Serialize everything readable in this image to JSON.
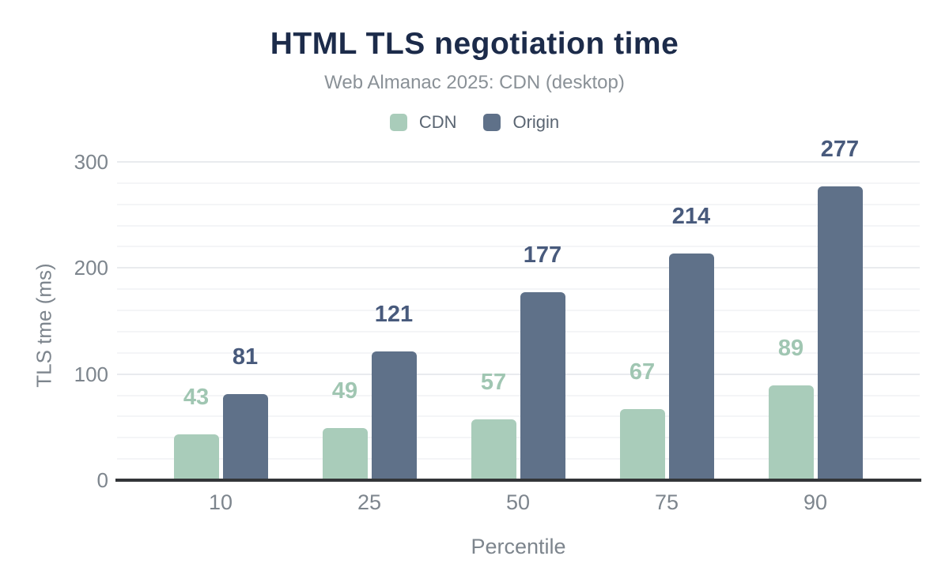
{
  "chart_data": {
    "type": "bar",
    "title": "HTML TLS negotiation time",
    "subtitle": "Web Almanac 2025: CDN (desktop)",
    "categories": [
      "10",
      "25",
      "50",
      "75",
      "90"
    ],
    "series": [
      {
        "name": "CDN",
        "color": "#a9ccba",
        "label_color": "#a0c6b2",
        "values": [
          43,
          49,
          57,
          67,
          89
        ]
      },
      {
        "name": "Origin",
        "color": "#5f7189",
        "label_color": "#485a7c",
        "values": [
          81,
          121,
          177,
          214,
          277
        ]
      }
    ],
    "xlabel": "Percentile",
    "ylabel": "TLS tme (ms)",
    "ylim": [
      0,
      300
    ],
    "yticks": [
      0,
      100,
      200,
      300
    ],
    "minor_grid_step": 20,
    "grid": true,
    "legend_position": "top",
    "value_labels": true
  },
  "colors": {
    "title": "#1c2b4a",
    "subtitle": "#8a9197",
    "axis_text": "#7d858d",
    "legend_text": "#5a6572",
    "axis_line": "#333538",
    "grid_minor": "#f4f5f7",
    "grid_major": "#e9ebee",
    "background": "#ffffff"
  }
}
